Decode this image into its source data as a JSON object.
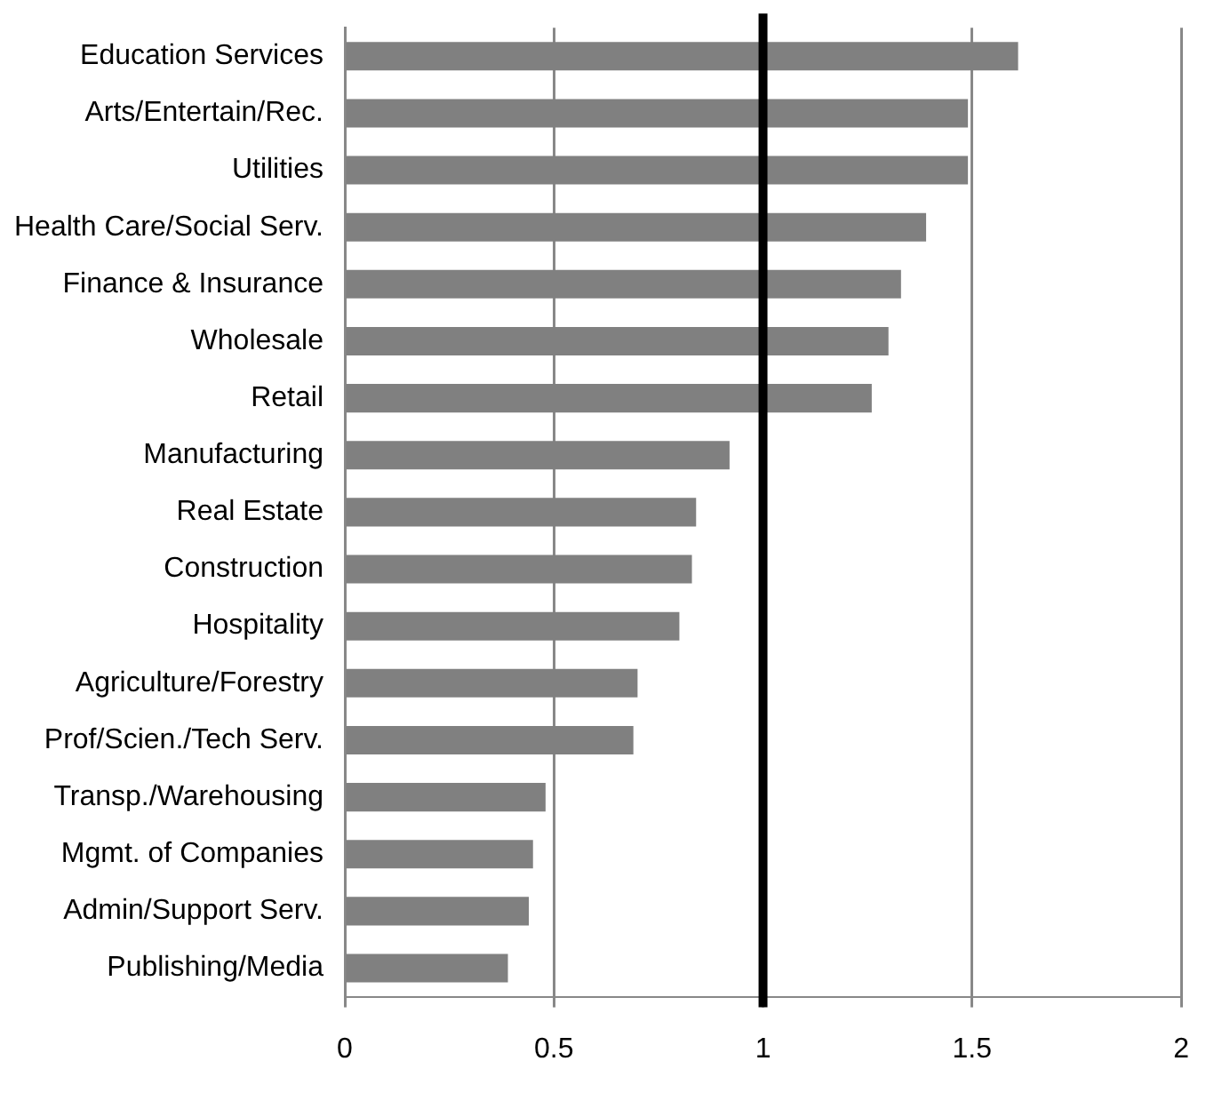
{
  "chart_data": {
    "type": "bar",
    "orientation": "horizontal",
    "categories": [
      "Education Services",
      "Arts/Entertain/Rec.",
      "Utilities",
      "Health Care/Social Serv.",
      "Finance & Insurance",
      "Wholesale",
      "Retail",
      "Manufacturing",
      "Real Estate",
      "Construction",
      "Hospitality",
      "Agriculture/Forestry",
      "Prof/Scien./Tech Serv.",
      "Transp./Warehousing",
      "Mgmt. of Companies",
      "Admin/Support Serv.",
      "Publishing/Media"
    ],
    "values": [
      1.61,
      1.49,
      1.49,
      1.39,
      1.33,
      1.3,
      1.26,
      0.92,
      0.84,
      0.83,
      0.8,
      0.7,
      0.69,
      0.48,
      0.45,
      0.44,
      0.39
    ],
    "color": "#808080",
    "xlim": [
      0,
      2
    ],
    "xticks": [
      0,
      0.5,
      1,
      1.5,
      2
    ],
    "grid": "x",
    "legend": false,
    "ref_lines": [
      {
        "axis": "x",
        "value": 1,
        "color": "#000000"
      }
    ]
  }
}
